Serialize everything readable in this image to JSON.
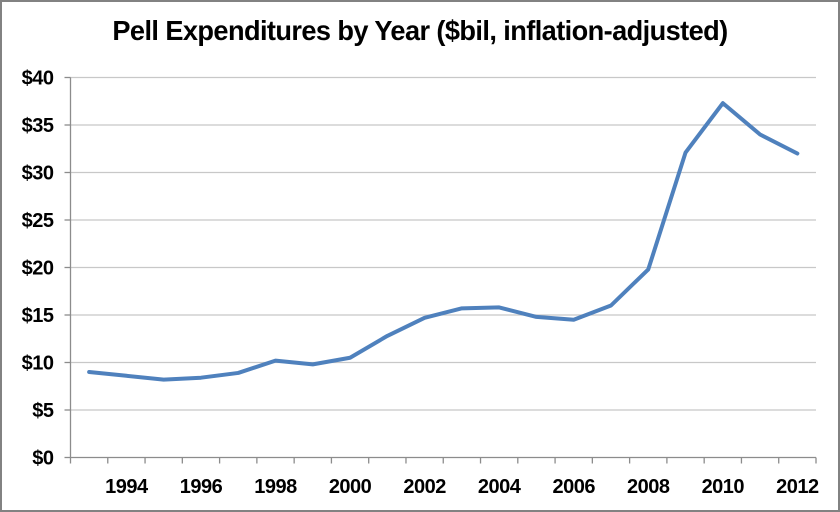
{
  "window": {
    "background": "#FFFFFF",
    "border_color": "#828282"
  },
  "chart_data": {
    "type": "line",
    "title": "Pell Expenditures by Year ($bil, inflation-adjusted)",
    "x": [
      1993,
      1994,
      1995,
      1996,
      1997,
      1998,
      1999,
      2000,
      2001,
      2002,
      2003,
      2004,
      2005,
      2006,
      2007,
      2008,
      2009,
      2010,
      2011,
      2012
    ],
    "series": [
      {
        "name": "Pell Expenditures",
        "color": "#4F81BD",
        "values": [
          9.0,
          8.6,
          8.2,
          8.4,
          8.9,
          10.2,
          9.8,
          10.5,
          12.8,
          14.7,
          15.7,
          15.8,
          14.8,
          14.5,
          16.0,
          19.8,
          32.1,
          37.3,
          34.0,
          32.0
        ]
      }
    ],
    "xlabel": "",
    "ylabel": "",
    "ylim": [
      0,
      40
    ],
    "y_tick_step": 5,
    "y_tick_labels": [
      "$0",
      "$5",
      "$10",
      "$15",
      "$20",
      "$25",
      "$30",
      "$35",
      "$40"
    ],
    "x_tick_labels": [
      "1994",
      "1996",
      "1998",
      "2000",
      "2002",
      "2004",
      "2006",
      "2008",
      "2010",
      "2012"
    ],
    "grid": true,
    "legend_position": "none",
    "axis_color": "#8C8C8C",
    "gridline_color": "#C8C8C8",
    "text_color": "#000000"
  }
}
